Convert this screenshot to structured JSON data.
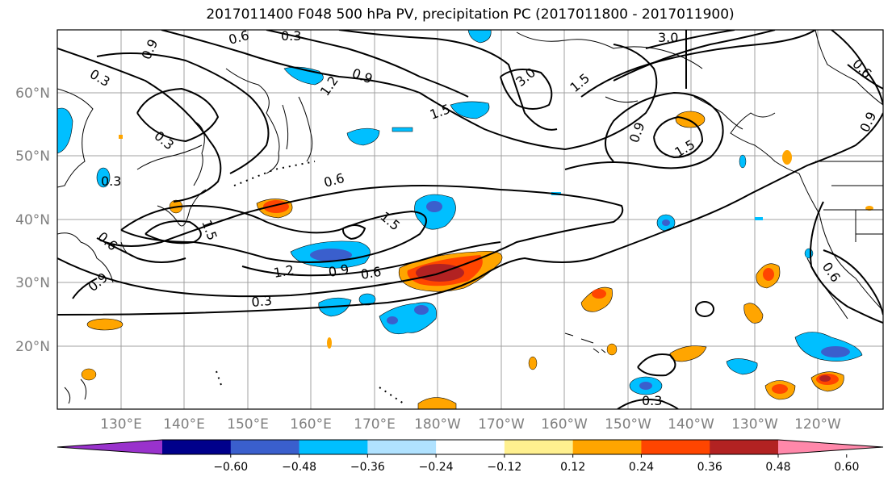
{
  "title": "2017011400 F048 500 hPa PV, precipitation PC (2017011800 - 2017011900)",
  "lat_labels": [
    "60°N",
    "50°N",
    "40°N",
    "30°N",
    "20°N"
  ],
  "lon_labels": [
    "130°E",
    "140°E",
    "150°E",
    "160°E",
    "170°E",
    "180°W",
    "170°W",
    "160°W",
    "150°W",
    "140°W",
    "130°W",
    "120°W"
  ],
  "contour_labels": [
    "0.3",
    "0.6",
    "0.9",
    "1.2",
    "1.5",
    "3.0"
  ],
  "colorbar": {
    "ticks": [
      "−0.60",
      "−0.48",
      "−0.36",
      "−0.24",
      "−0.12",
      "0.12",
      "0.24",
      "0.36",
      "0.48",
      "0.60"
    ],
    "colors": [
      "#9932cc",
      "#00008b",
      "#3a5fcd",
      "#00bfff",
      "#b0e2ff",
      "#ffffff",
      "#fff08f",
      "#ffa500",
      "#ff4500",
      "#b22222",
      "#ff88aa"
    ]
  }
}
